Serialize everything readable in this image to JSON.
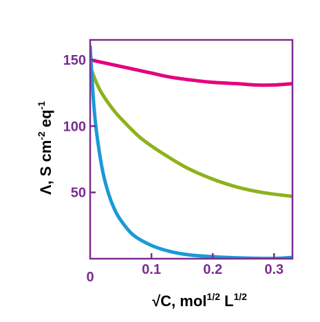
{
  "chart_data": {
    "type": "line",
    "xlabel": {
      "base": "√C, mol",
      "sup1": "1/2",
      "mid": " L",
      "sup2": "1/2"
    },
    "ylabel": {
      "base": "Λ, S cm",
      "sup1": "-2",
      "mid": " eq",
      "sup2": "-1"
    },
    "xlim": [
      0,
      0.33
    ],
    "ylim": [
      0,
      165
    ],
    "x_ticks": [
      {
        "value": 0,
        "label": "0"
      },
      {
        "value": 0.1,
        "label": "0.1"
      },
      {
        "value": 0.2,
        "label": "0.2"
      },
      {
        "value": 0.3,
        "label": "0.3"
      }
    ],
    "y_ticks": [
      {
        "value": 50,
        "label": "50"
      },
      {
        "value": 100,
        "label": "100"
      },
      {
        "value": 150,
        "label": "150"
      }
    ],
    "grid": false,
    "legend": "none",
    "axis_color": "#7b2d8e",
    "label_color": "#7b2d8e",
    "title_color": "#000000",
    "series": [
      {
        "color": "#e6007e",
        "x": [
          0,
          0.02,
          0.05,
          0.08,
          0.1,
          0.13,
          0.16,
          0.2,
          0.24,
          0.27,
          0.3,
          0.33
        ],
        "y": [
          150,
          148,
          145,
          142,
          140,
          137,
          135,
          133,
          132,
          131,
          131,
          132
        ]
      },
      {
        "color": "#8db21c",
        "x": [
          0,
          0.01,
          0.02,
          0.04,
          0.06,
          0.08,
          0.1,
          0.13,
          0.16,
          0.2,
          0.24,
          0.28,
          0.33
        ],
        "y": [
          145,
          133,
          124,
          111,
          101,
          92,
          85,
          76,
          68,
          60,
          54,
          50,
          47
        ]
      },
      {
        "color": "#1a9ad6",
        "x": [
          0,
          0.005,
          0.01,
          0.02,
          0.03,
          0.04,
          0.05,
          0.07,
          0.1,
          0.13,
          0.16,
          0.2,
          0.25,
          0.3,
          0.33
        ],
        "y": [
          160,
          122,
          97,
          67,
          49,
          37,
          29,
          18,
          10,
          5.5,
          3,
          1.5,
          0.5,
          0.2,
          1
        ]
      }
    ]
  }
}
